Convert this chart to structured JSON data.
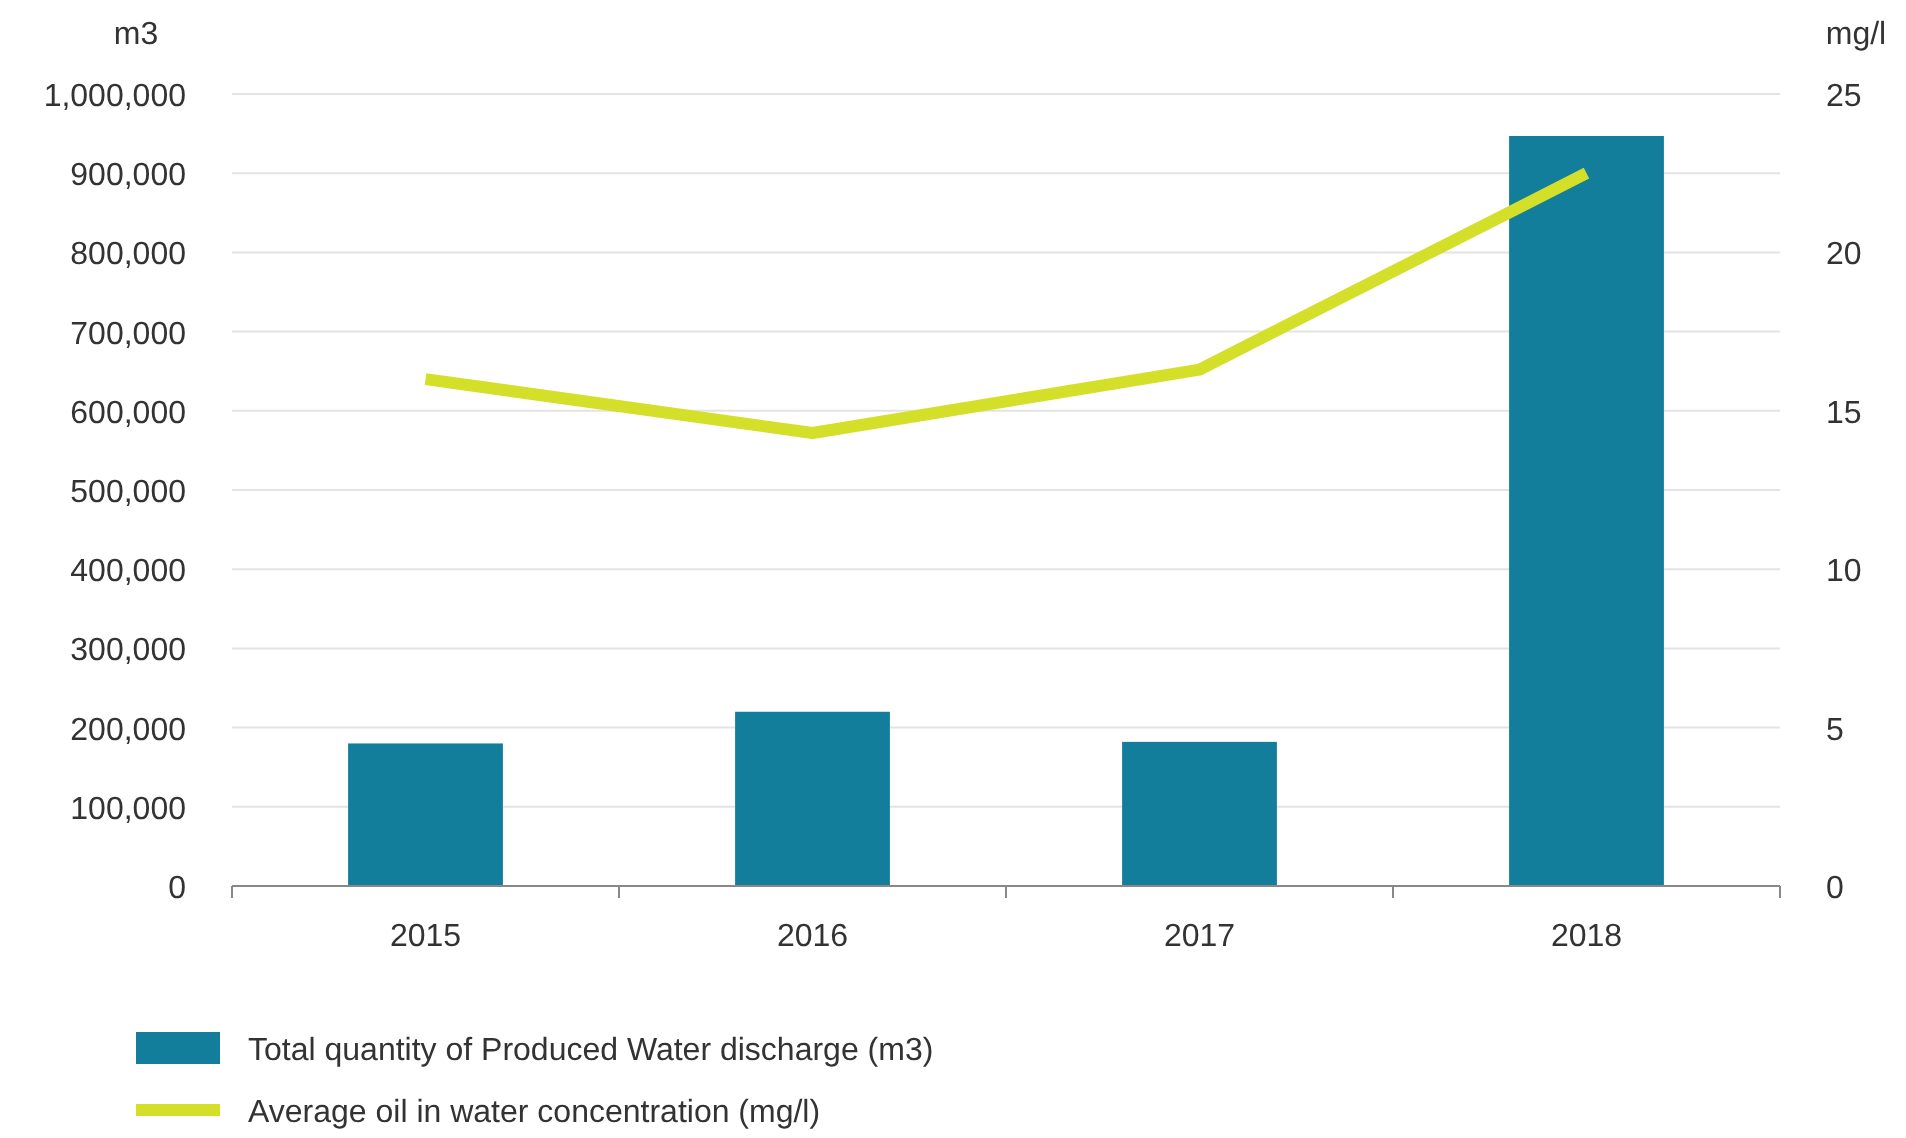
{
  "chart_data": {
    "type": "bar",
    "categories": [
      "2015",
      "2016",
      "2017",
      "2018"
    ],
    "ylabel": "m3",
    "y2label": "mg/l",
    "ylim": [
      0,
      1000000
    ],
    "yticks": [
      {
        "value": 0,
        "label": "0"
      },
      {
        "value": 100000,
        "label": "100,000"
      },
      {
        "value": 200000,
        "label": "200,000"
      },
      {
        "value": 300000,
        "label": "300,000"
      },
      {
        "value": 400000,
        "label": "400,000"
      },
      {
        "value": 500000,
        "label": "500,000"
      },
      {
        "value": 600000,
        "label": "600,000"
      },
      {
        "value": 700000,
        "label": "700,000"
      },
      {
        "value": 800000,
        "label": "800,000"
      },
      {
        "value": 900000,
        "label": "900,000"
      },
      {
        "value": 1000000,
        "label": "1,000,000"
      }
    ],
    "y2lim": [
      0,
      25
    ],
    "y2ticks": [
      0,
      5,
      10,
      15,
      20,
      25
    ],
    "grid": "y",
    "legend": "bottom",
    "series": [
      {
        "name": "Total quantity of Produced Water discharge (m3)",
        "color": "#127e9b",
        "values": [
          180000,
          220000,
          182000,
          947000
        ]
      },
      {
        "name": "Average oil in water concentration (mg/l)",
        "type": "line",
        "axis": "y2",
        "color": "#d4df2a",
        "values": [
          16.0,
          14.3,
          16.3,
          22.5
        ]
      }
    ]
  }
}
